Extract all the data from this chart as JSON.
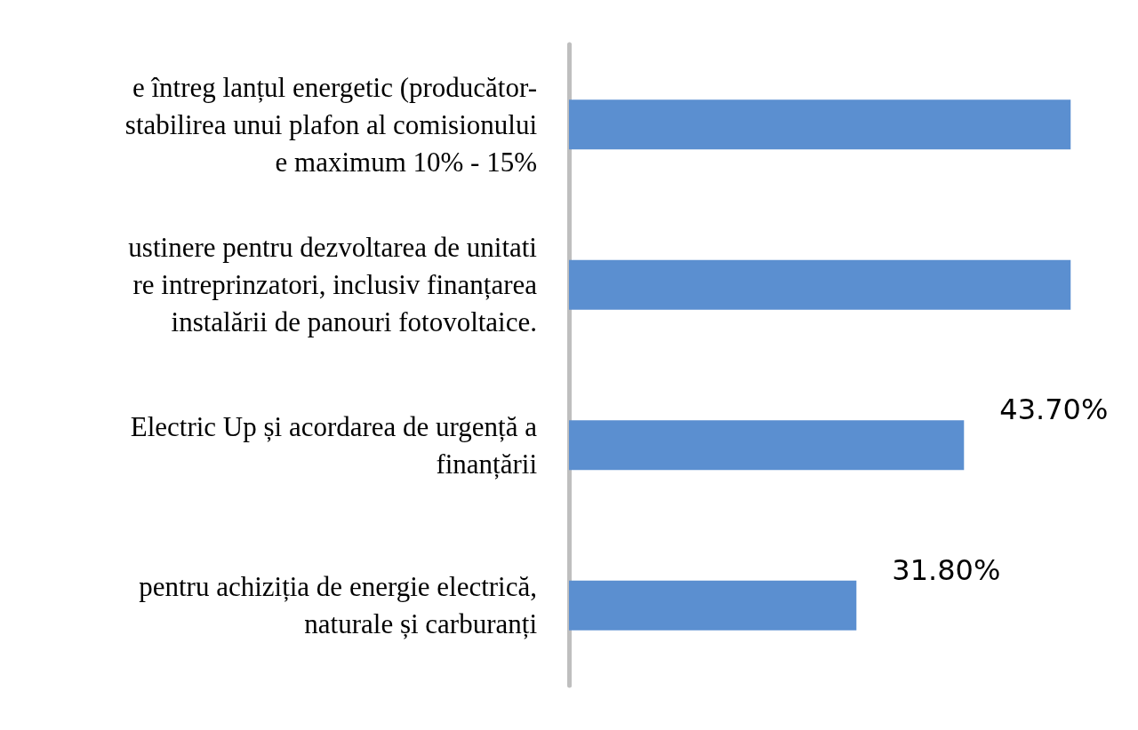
{
  "chart_data": {
    "type": "bar",
    "orientation": "horizontal",
    "categories": [
      "e întreg lanțul energetic (producător-\nstabilirea unui plafon al comisionului\ne maximum 10% - 15%",
      "ustinere pentru dezvoltarea de unitati\nre intreprinzatori, inclusiv finanțarea\ninstalării de panouri fotovoltaice.",
      "Electric Up și acordarea de urgență a\nfinanțării",
      "pentru achiziția de energie electrică,\nnaturale și carburanți"
    ],
    "values": [
      55.5,
      55.5,
      43.7,
      31.8
    ],
    "value_labels": [
      null,
      null,
      "43.70%",
      "31.80%"
    ],
    "color": "#5b8fd0",
    "tick_labels": "y",
    "grid": false
  }
}
